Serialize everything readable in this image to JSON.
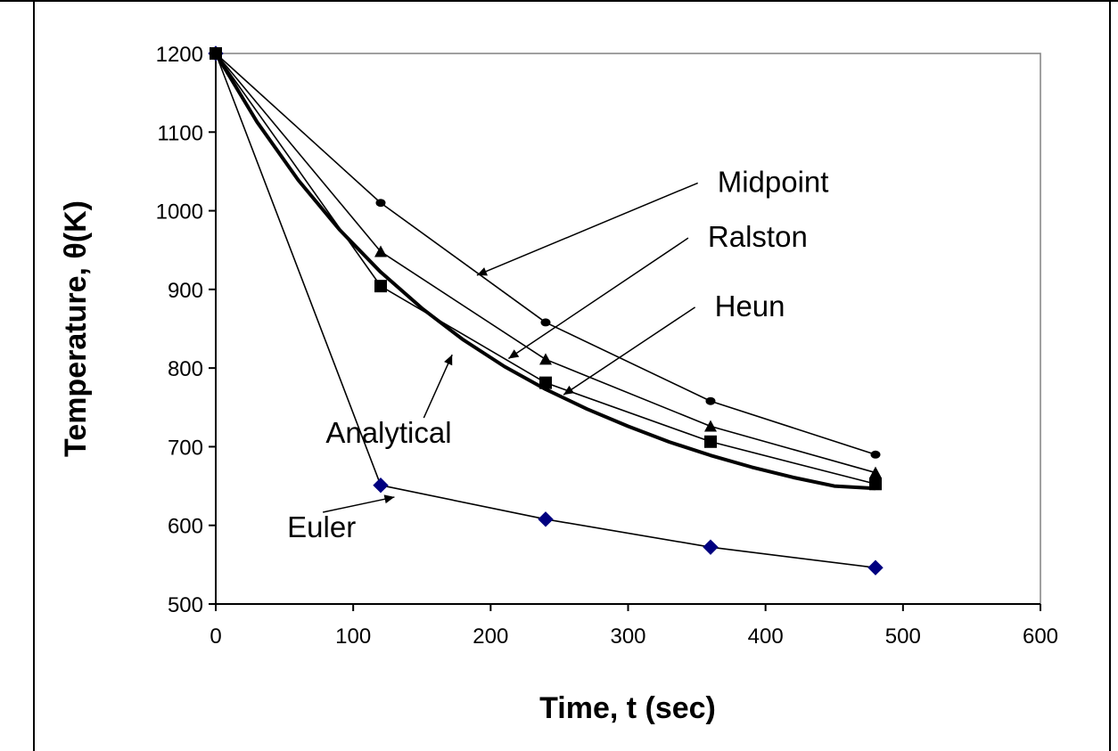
{
  "chart_data": {
    "type": "line",
    "xlabel": "Time, t (sec)",
    "ylabel": "Temperature,  θ(K)",
    "xlim": [
      0,
      600
    ],
    "ylim": [
      500,
      1200
    ],
    "xticks": [
      0,
      100,
      200,
      300,
      400,
      500,
      600
    ],
    "yticks": [
      500,
      600,
      700,
      800,
      900,
      1000,
      1100,
      1200
    ],
    "grid": false,
    "series": [
      {
        "name": "Euler",
        "color": "#000080",
        "marker": "diamond",
        "x": [
          0,
          120,
          240,
          360,
          480
        ],
        "y": [
          1200,
          650.99,
          607.8,
          572.29,
          546.2
        ]
      },
      {
        "name": "Heun",
        "color": "#000000",
        "marker": "square",
        "x": [
          0,
          120,
          240,
          360,
          480
        ],
        "y": [
          1200,
          904.2,
          781.3,
          706.4,
          652.6
        ]
      },
      {
        "name": "Midpoint",
        "color": "#000000",
        "marker": "circle",
        "x": [
          0,
          120,
          240,
          360,
          480
        ],
        "y": [
          1200,
          1010,
          858,
          758,
          690
        ]
      },
      {
        "name": "Ralston",
        "color": "#000000",
        "marker": "triangle",
        "x": [
          0,
          120,
          240,
          360,
          480
        ],
        "y": [
          1200,
          948,
          811,
          726,
          667
        ]
      },
      {
        "name": "Analytical",
        "color": "#000000",
        "marker": "none",
        "line_width": "thick",
        "x": [
          0,
          30,
          60,
          90,
          120,
          150,
          180,
          210,
          240,
          270,
          300,
          330,
          360,
          390,
          420,
          450,
          480
        ],
        "y": [
          1200,
          1113,
          1039,
          976,
          922,
          876,
          836,
          802,
          773,
          748,
          726,
          706,
          689,
          674,
          661,
          650,
          647
        ]
      }
    ],
    "annotations": [
      {
        "text": "Midpoint",
        "label_at": [
          365,
          1024
        ],
        "arrow_to": [
          190,
          918
        ]
      },
      {
        "text": "Ralston",
        "label_at": [
          358,
          954
        ],
        "arrow_to": [
          213,
          812
        ]
      },
      {
        "text": "Heun",
        "label_at": [
          363,
          866
        ],
        "arrow_to": [
          253,
          766
        ]
      },
      {
        "text": "Analytical",
        "label_at": [
          80,
          705
        ],
        "arrow_to": [
          172,
          817
        ]
      },
      {
        "text": "Euler",
        "label_at": [
          52,
          585
        ],
        "arrow_to": [
          130,
          636
        ]
      }
    ]
  }
}
